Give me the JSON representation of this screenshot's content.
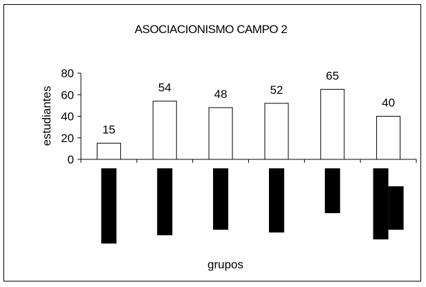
{
  "chart_data": {
    "type": "bar",
    "title": "ASOCIACIONISMO CAMPO 2",
    "xlabel": "grupos",
    "ylabel": "estudiantes",
    "ylim": [
      0,
      80
    ],
    "yticks": [
      0,
      20,
      40,
      60,
      80
    ],
    "categories": [
      "",
      "",
      "",
      "",
      "",
      ""
    ],
    "series": [
      {
        "values": [
          15,
          54,
          48,
          52,
          65,
          40
        ],
        "color": "#ffffff"
      }
    ],
    "data_labels": [
      "15",
      "54",
      "48",
      "52",
      "65",
      "40"
    ],
    "grid": false,
    "category_tick_label_fill": "#000000"
  }
}
